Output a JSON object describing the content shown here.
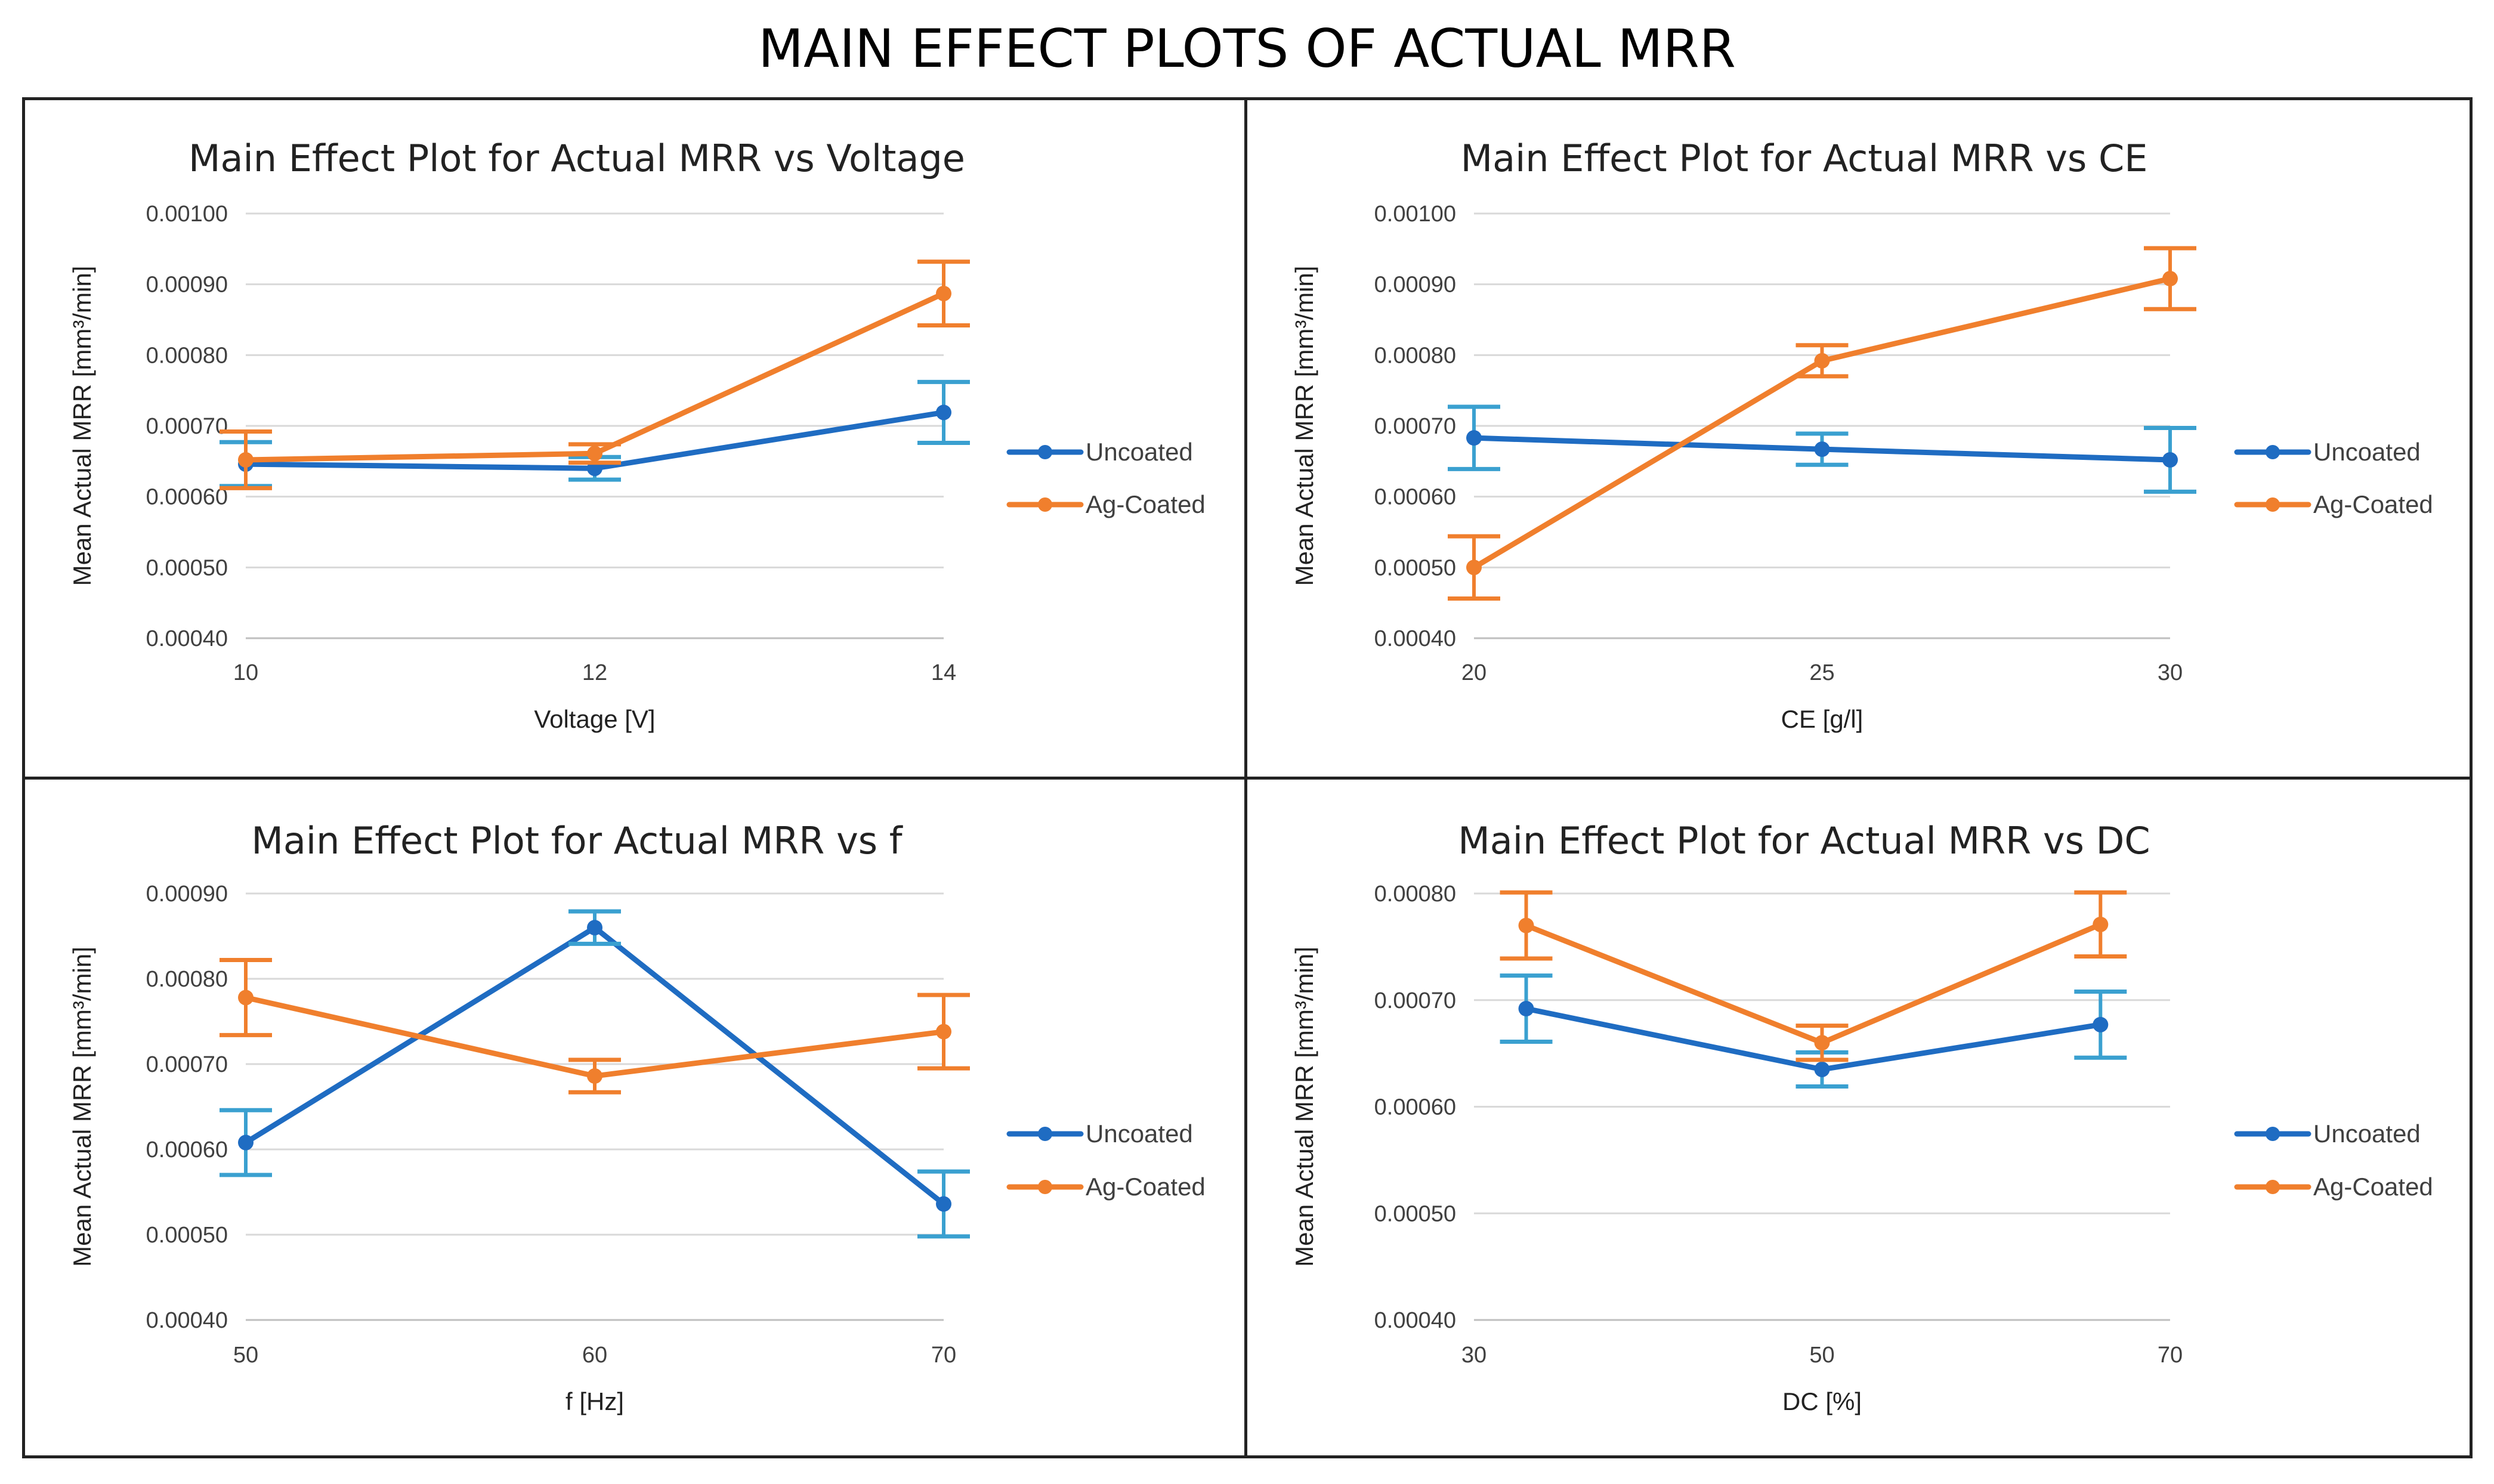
{
  "title": "MAIN EFFECT PLOTS OF ACTUAL MRR",
  "colors": {
    "uncoated": "#1f6cc2",
    "uncoated_err": "#3aa0d0",
    "ag_coated": "#f07f2d",
    "grid": "#d9d9d9",
    "axis": "#bfbfbf"
  },
  "chart_data": [
    {
      "type": "line",
      "title": "Main Effect Plot for Actual MRR vs Voltage",
      "xlabel": "Voltage [V]",
      "ylabel": "Mean Actual MRR [mm³/min]",
      "x_ticks": [
        "10",
        "12",
        "14"
      ],
      "x_range": [
        10,
        14
      ],
      "ylim": [
        0.0004,
        0.001
      ],
      "y_ticks": [
        "0.00040",
        "0.00050",
        "0.00060",
        "0.00070",
        "0.00080",
        "0.00090",
        "0.00100"
      ],
      "legend": [
        "Uncoated",
        "Ag-Coated"
      ],
      "series": [
        {
          "name": "Uncoated",
          "x": [
            10,
            12,
            14
          ],
          "values": [
            0.000646,
            0.00064,
            0.000719
          ],
          "err": [
            3.1e-05,
            1.6e-05,
            4.3e-05
          ]
        },
        {
          "name": "Ag-Coated",
          "x": [
            10,
            12,
            14
          ],
          "values": [
            0.000652,
            0.000661,
            0.000887
          ],
          "err": [
            4e-05,
            1.3e-05,
            4.5e-05
          ]
        }
      ]
    },
    {
      "type": "line",
      "title": "Main Effect Plot for Actual MRR vs CE",
      "xlabel": "CE [g/l]",
      "ylabel": "Mean Actual MRR [mm³/min]",
      "x_ticks": [
        "20",
        "25",
        "30"
      ],
      "x_range": [
        20,
        30
      ],
      "ylim": [
        0.0004,
        0.001
      ],
      "y_ticks": [
        "0.00040",
        "0.00050",
        "0.00060",
        "0.00070",
        "0.00080",
        "0.00090",
        "0.00100"
      ],
      "legend": [
        "Uncoated",
        "Ag-Coated"
      ],
      "series": [
        {
          "name": "Uncoated",
          "x": [
            20,
            25,
            30
          ],
          "values": [
            0.000683,
            0.000667,
            0.000652
          ],
          "err": [
            4.4e-05,
            2.2e-05,
            4.5e-05
          ]
        },
        {
          "name": "Ag-Coated",
          "x": [
            20,
            25,
            30
          ],
          "values": [
            0.0005,
            0.000792,
            0.000908
          ],
          "err": [
            4.4e-05,
            2.2e-05,
            4.3e-05
          ]
        }
      ]
    },
    {
      "type": "line",
      "title": "Main Effect Plot for Actual MRR vs f",
      "xlabel": "f [Hz]",
      "ylabel": "Mean Actual MRR [mm³/min]",
      "x_ticks": [
        "50",
        "60",
        "70"
      ],
      "x_range": [
        50,
        70
      ],
      "ylim": [
        0.0004,
        0.0009
      ],
      "y_ticks": [
        "0.00040",
        "0.00050",
        "0.00060",
        "0.00070",
        "0.00080",
        "0.00090"
      ],
      "legend": [
        "Uncoated",
        "Ag-Coated"
      ],
      "series": [
        {
          "name": "Uncoated",
          "x": [
            50,
            60,
            70
          ],
          "values": [
            0.000608,
            0.00086,
            0.000536
          ],
          "err": [
            3.8e-05,
            1.9e-05,
            3.8e-05
          ]
        },
        {
          "name": "Ag-Coated",
          "x": [
            50,
            60,
            70
          ],
          "values": [
            0.000778,
            0.000686,
            0.000738
          ],
          "err": [
            4.4e-05,
            1.9e-05,
            4.3e-05
          ]
        }
      ]
    },
    {
      "type": "line",
      "title": "Main Effect Plot for Actual MRR vs DC",
      "xlabel": "DC [%]",
      "ylabel": "Mean Actual MRR [mm³/min]",
      "x_ticks": [
        "30",
        "50",
        "70"
      ],
      "x_range": [
        30,
        70
      ],
      "ylim": [
        0.0004,
        0.0008
      ],
      "y_ticks": [
        "0.00040",
        "0.00050",
        "0.00060",
        "0.00070",
        "0.00080"
      ],
      "legend": [
        "Uncoated",
        "Ag-Coated"
      ],
      "series": [
        {
          "name": "Uncoated",
          "x": [
            33,
            50,
            66
          ],
          "values": [
            0.000692,
            0.000635,
            0.000677
          ],
          "err": [
            3.1e-05,
            1.6e-05,
            3.1e-05
          ]
        },
        {
          "name": "Ag-Coated",
          "x": [
            33,
            50,
            66
          ],
          "values": [
            0.00077,
            0.00066,
            0.000771
          ],
          "err": [
            3.1e-05,
            1.6e-05,
            3e-05
          ]
        }
      ]
    }
  ]
}
